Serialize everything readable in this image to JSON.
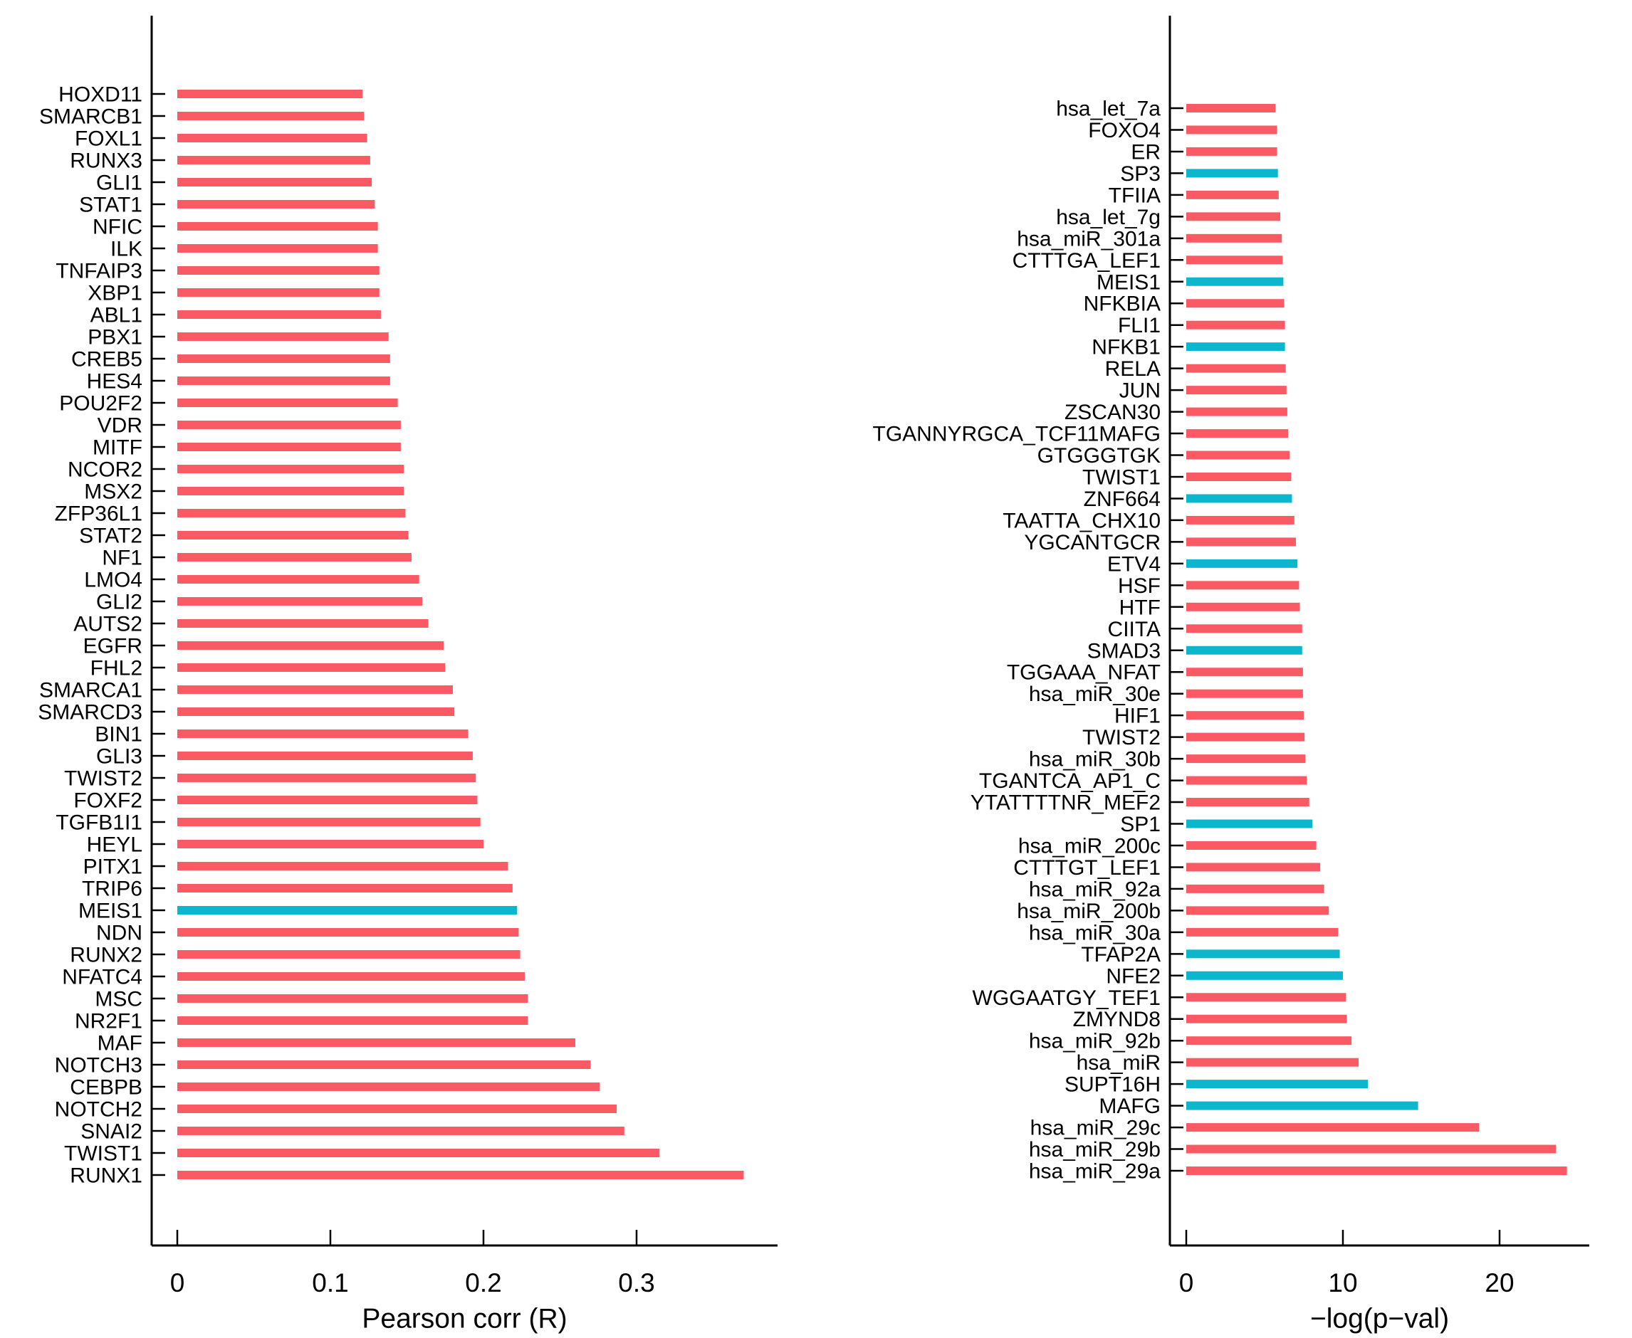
{
  "page": {
    "background": "#ffffff"
  },
  "colors": {
    "bar_default": "#FA5A64",
    "bar_highlight": "#0CB7CD",
    "axis": "#000000",
    "text": "#000000"
  },
  "chart_data": [
    {
      "type": "bar",
      "orientation": "horizontal",
      "title": "",
      "xlabel": "Pearson corr (R)",
      "ylabel": "",
      "grid": false,
      "legend": null,
      "xlim": [
        0,
        0.392
      ],
      "xticks": [
        0,
        0.1,
        0.2,
        0.3
      ],
      "xtick_labels": [
        "0",
        "0.1",
        "0.2",
        "0.3"
      ],
      "bar_color_default": "#FA5A64",
      "bar_color_highlight": "#0CB7CD",
      "highlighted": [
        "MEIS1"
      ],
      "categories": [
        "HOXD11",
        "SMARCB1",
        "FOXL1",
        "RUNX3",
        "GLI1",
        "STAT1",
        "NFIC",
        "ILK",
        "TNFAIP3",
        "XBP1",
        "ABL1",
        "PBX1",
        "CREB5",
        "HES4",
        "POU2F2",
        "VDR",
        "MITF",
        "NCOR2",
        "MSX2",
        "ZFP36L1",
        "STAT2",
        "NF1",
        "LMO4",
        "GLI2",
        "AUTS2",
        "EGFR",
        "FHL2",
        "SMARCA1",
        "SMARCD3",
        "BIN1",
        "GLI3",
        "TWIST2",
        "FOXF2",
        "TGFB1I1",
        "HEYL",
        "PITX1",
        "TRIP6",
        "MEIS1",
        "NDN",
        "RUNX2",
        "NFATC4",
        "MSC",
        "NR2F1",
        "MAF",
        "NOTCH3",
        "CEBPB",
        "NOTCH2",
        "SNAI2",
        "TWIST1",
        "RUNX1"
      ],
      "values": [
        0.121,
        0.122,
        0.124,
        0.126,
        0.127,
        0.129,
        0.131,
        0.131,
        0.132,
        0.132,
        0.133,
        0.138,
        0.139,
        0.139,
        0.144,
        0.146,
        0.146,
        0.148,
        0.148,
        0.149,
        0.151,
        0.153,
        0.158,
        0.16,
        0.164,
        0.174,
        0.175,
        0.18,
        0.181,
        0.19,
        0.193,
        0.195,
        0.196,
        0.198,
        0.2,
        0.216,
        0.219,
        0.222,
        0.223,
        0.224,
        0.227,
        0.229,
        0.229,
        0.26,
        0.27,
        0.276,
        0.287,
        0.292,
        0.315,
        0.37
      ]
    },
    {
      "type": "bar",
      "orientation": "horizontal",
      "title": "",
      "xlabel": "−log(p−val)",
      "ylabel": "",
      "grid": false,
      "legend": null,
      "xlim": [
        0,
        25.7
      ],
      "xticks": [
        0,
        10,
        20
      ],
      "xtick_labels": [
        "0",
        "10",
        "20"
      ],
      "bar_color_default": "#FA5A64",
      "bar_color_highlight": "#0CB7CD",
      "highlighted": [
        "SP3",
        "MEIS1",
        "NFKB1",
        "ZNF664",
        "ETV4",
        "SMAD3",
        "SP1",
        "TFAP2A",
        "NFE2",
        "SUPT16H",
        "MAFG"
      ],
      "categories": [
        "hsa_let_7a",
        "FOXO4",
        "ER",
        "SP3",
        "TFIIA",
        "hsa_let_7g",
        "hsa_miR_301a",
        "CTTTGA_LEF1",
        "MEIS1",
        "NFKBIA",
        "FLI1",
        "NFKB1",
        "RELA",
        "JUN",
        "ZSCAN30",
        "TGANNYRGCA_TCF11MAFG",
        "GTGGGTGK",
        "TWIST1",
        "ZNF664",
        "TAATTA_CHX10",
        "YGCANTGCR",
        "ETV4",
        "HSF",
        "HTF",
        "CIITA",
        "SMAD3",
        "TGGAAA_NFAT",
        "hsa_miR_30e",
        "HIF1",
        "TWIST2",
        "hsa_miR_30b",
        "TGANTCA_AP1_C",
        "YTATTTTNR_MEF2",
        "SP1",
        "hsa_miR_200c",
        "CTTTGT_LEF1",
        "hsa_miR_92a",
        "hsa_miR_200b",
        "hsa_miR_30a",
        "TFAP2A",
        "NFE2",
        "WGGAATGY_TEF1",
        "ZMYND8",
        "hsa_miR_92b",
        "hsa_miR",
        "SUPT16H",
        "MAFG",
        "hsa_miR_29c",
        "hsa_miR_29b",
        "hsa_miR_29a"
      ],
      "values": [
        5.7,
        5.8,
        5.8,
        5.85,
        5.9,
        6.0,
        6.1,
        6.15,
        6.2,
        6.25,
        6.3,
        6.3,
        6.35,
        6.4,
        6.45,
        6.5,
        6.6,
        6.7,
        6.75,
        6.9,
        7.0,
        7.1,
        7.2,
        7.25,
        7.4,
        7.4,
        7.45,
        7.45,
        7.5,
        7.55,
        7.6,
        7.7,
        7.85,
        8.05,
        8.3,
        8.55,
        8.8,
        9.1,
        9.7,
        9.8,
        10.0,
        10.2,
        10.25,
        10.55,
        11.0,
        11.6,
        14.8,
        18.7,
        23.6,
        24.3
      ]
    }
  ]
}
